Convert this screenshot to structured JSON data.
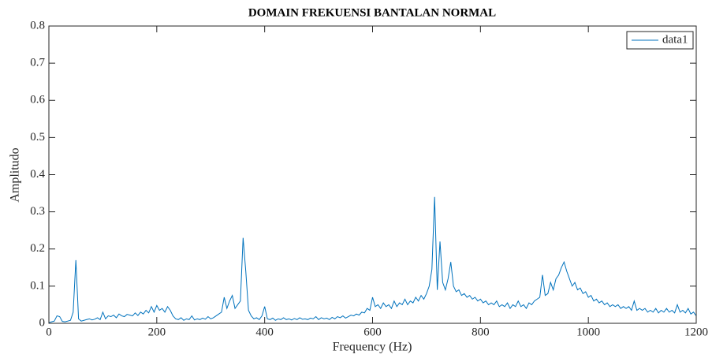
{
  "chart_data": {
    "type": "line",
    "title": "DOMAIN FREKUENSI BANTALAN NORMAL",
    "x_label": "Frequency (Hz)",
    "y_label": "Amplitudo",
    "xlim": [
      0,
      1200
    ],
    "ylim": [
      0,
      0.8
    ],
    "xticks": [
      0,
      200,
      400,
      600,
      800,
      1000,
      1200
    ],
    "yticks": [
      0,
      0.1,
      0.2,
      0.3,
      0.4,
      0.5,
      0.6,
      0.7,
      0.8
    ],
    "grid": false,
    "legend": "upper right",
    "x": [
      0,
      5,
      10,
      15,
      20,
      25,
      30,
      35,
      40,
      45,
      50,
      55,
      60,
      65,
      70,
      75,
      80,
      85,
      90,
      95,
      100,
      105,
      110,
      115,
      120,
      125,
      130,
      135,
      140,
      145,
      150,
      155,
      160,
      165,
      170,
      175,
      180,
      185,
      190,
      195,
      200,
      205,
      210,
      215,
      220,
      225,
      230,
      235,
      240,
      245,
      250,
      255,
      260,
      265,
      270,
      275,
      280,
      285,
      290,
      295,
      300,
      305,
      310,
      315,
      320,
      325,
      330,
      335,
      340,
      345,
      350,
      355,
      360,
      365,
      370,
      375,
      380,
      385,
      390,
      395,
      400,
      405,
      410,
      415,
      420,
      425,
      430,
      435,
      440,
      445,
      450,
      455,
      460,
      465,
      470,
      475,
      480,
      485,
      490,
      495,
      500,
      505,
      510,
      515,
      520,
      525,
      530,
      535,
      540,
      545,
      550,
      555,
      560,
      565,
      570,
      575,
      580,
      585,
      590,
      595,
      600,
      605,
      610,
      615,
      620,
      625,
      630,
      635,
      640,
      645,
      650,
      655,
      660,
      665,
      670,
      675,
      680,
      685,
      690,
      695,
      700,
      705,
      710,
      715,
      720,
      725,
      730,
      735,
      740,
      745,
      750,
      755,
      760,
      765,
      770,
      775,
      780,
      785,
      790,
      795,
      800,
      805,
      810,
      815,
      820,
      825,
      830,
      835,
      840,
      845,
      850,
      855,
      860,
      865,
      870,
      875,
      880,
      885,
      890,
      895,
      900,
      905,
      910,
      915,
      920,
      925,
      930,
      935,
      940,
      945,
      950,
      955,
      960,
      965,
      970,
      975,
      980,
      985,
      990,
      995,
      1000,
      1005,
      1010,
      1015,
      1020,
      1025,
      1030,
      1035,
      1040,
      1045,
      1050,
      1055,
      1060,
      1065,
      1070,
      1075,
      1080,
      1085,
      1090,
      1095,
      1100,
      1105,
      1110,
      1115,
      1120,
      1125,
      1130,
      1135,
      1140,
      1145,
      1150,
      1155,
      1160,
      1165,
      1170,
      1175,
      1180,
      1185,
      1190,
      1195,
      1200
    ],
    "series": [
      {
        "name": "data1",
        "color": "#0072bd",
        "values": [
          0.002,
          0.004,
          0.006,
          0.02,
          0.018,
          0.005,
          0.004,
          0.006,
          0.008,
          0.03,
          0.17,
          0.012,
          0.006,
          0.008,
          0.01,
          0.012,
          0.009,
          0.011,
          0.015,
          0.01,
          0.03,
          0.012,
          0.02,
          0.018,
          0.022,
          0.015,
          0.025,
          0.02,
          0.018,
          0.024,
          0.022,
          0.02,
          0.028,
          0.021,
          0.03,
          0.025,
          0.035,
          0.028,
          0.045,
          0.03,
          0.048,
          0.035,
          0.04,
          0.03,
          0.045,
          0.035,
          0.02,
          0.012,
          0.01,
          0.015,
          0.008,
          0.012,
          0.01,
          0.02,
          0.009,
          0.012,
          0.01,
          0.014,
          0.011,
          0.018,
          0.012,
          0.015,
          0.02,
          0.025,
          0.03,
          0.07,
          0.04,
          0.06,
          0.075,
          0.04,
          0.05,
          0.06,
          0.23,
          0.14,
          0.035,
          0.02,
          0.012,
          0.015,
          0.01,
          0.02,
          0.045,
          0.012,
          0.01,
          0.014,
          0.008,
          0.012,
          0.01,
          0.015,
          0.01,
          0.012,
          0.009,
          0.013,
          0.01,
          0.015,
          0.011,
          0.012,
          0.01,
          0.014,
          0.012,
          0.018,
          0.01,
          0.015,
          0.012,
          0.014,
          0.01,
          0.016,
          0.012,
          0.018,
          0.015,
          0.02,
          0.014,
          0.018,
          0.022,
          0.02,
          0.025,
          0.022,
          0.03,
          0.028,
          0.04,
          0.035,
          0.07,
          0.045,
          0.05,
          0.04,
          0.055,
          0.045,
          0.05,
          0.04,
          0.06,
          0.045,
          0.055,
          0.05,
          0.065,
          0.05,
          0.06,
          0.055,
          0.07,
          0.06,
          0.075,
          0.065,
          0.08,
          0.1,
          0.145,
          0.34,
          0.09,
          0.22,
          0.11,
          0.09,
          0.12,
          0.165,
          0.1,
          0.085,
          0.09,
          0.075,
          0.08,
          0.07,
          0.075,
          0.065,
          0.07,
          0.06,
          0.065,
          0.055,
          0.06,
          0.05,
          0.055,
          0.05,
          0.06,
          0.045,
          0.05,
          0.045,
          0.055,
          0.04,
          0.05,
          0.045,
          0.06,
          0.045,
          0.05,
          0.04,
          0.055,
          0.05,
          0.06,
          0.065,
          0.07,
          0.13,
          0.075,
          0.08,
          0.11,
          0.09,
          0.12,
          0.13,
          0.15,
          0.165,
          0.14,
          0.12,
          0.1,
          0.11,
          0.09,
          0.095,
          0.08,
          0.085,
          0.07,
          0.075,
          0.06,
          0.065,
          0.055,
          0.06,
          0.05,
          0.055,
          0.045,
          0.05,
          0.045,
          0.05,
          0.04,
          0.045,
          0.04,
          0.045,
          0.035,
          0.06,
          0.035,
          0.04,
          0.035,
          0.04,
          0.03,
          0.035,
          0.03,
          0.04,
          0.028,
          0.035,
          0.03,
          0.04,
          0.03,
          0.035,
          0.028,
          0.05,
          0.03,
          0.035,
          0.028,
          0.04,
          0.025,
          0.03,
          0.02
        ]
      }
    ]
  }
}
